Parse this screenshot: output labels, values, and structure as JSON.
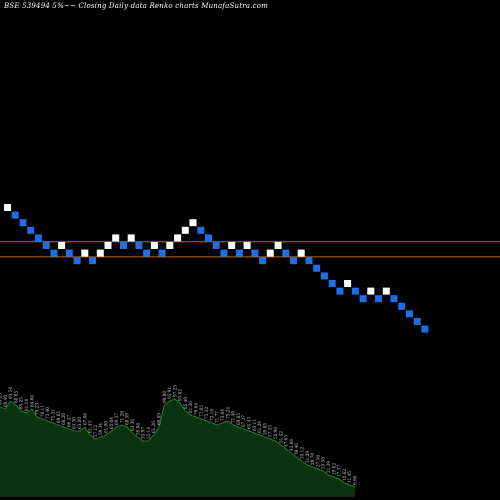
{
  "header": {
    "title": "BSE 539494  5%~~  Closing Daily data  Renko  charts MunafaSutra.com"
  },
  "colors": {
    "background": "#000000",
    "up_brick": "#ffffff",
    "down_brick": "#1e6fe6",
    "level_line": "#b8651a",
    "volume_fill": "#0b3311",
    "volume_line": "#1e7a2a",
    "volume_label": "#c8c8c8"
  },
  "chart_data": {
    "type": "renko",
    "bricks": [
      {
        "dir": "up",
        "level": 18
      },
      {
        "dir": "down",
        "level": 17
      },
      {
        "dir": "down",
        "level": 16
      },
      {
        "dir": "down",
        "level": 15
      },
      {
        "dir": "down",
        "level": 14
      },
      {
        "dir": "down",
        "level": 13
      },
      {
        "dir": "down",
        "level": 12
      },
      {
        "dir": "up",
        "level": 13
      },
      {
        "dir": "down",
        "level": 12
      },
      {
        "dir": "down",
        "level": 11
      },
      {
        "dir": "up",
        "level": 12
      },
      {
        "dir": "down",
        "level": 11
      },
      {
        "dir": "up",
        "level": 12
      },
      {
        "dir": "up",
        "level": 13
      },
      {
        "dir": "up",
        "level": 14
      },
      {
        "dir": "down",
        "level": 13
      },
      {
        "dir": "up",
        "level": 14
      },
      {
        "dir": "down",
        "level": 13
      },
      {
        "dir": "down",
        "level": 12
      },
      {
        "dir": "up",
        "level": 13
      },
      {
        "dir": "down",
        "level": 12
      },
      {
        "dir": "up",
        "level": 13
      },
      {
        "dir": "up",
        "level": 14
      },
      {
        "dir": "up",
        "level": 15
      },
      {
        "dir": "up",
        "level": 16
      },
      {
        "dir": "down",
        "level": 15
      },
      {
        "dir": "down",
        "level": 14
      },
      {
        "dir": "down",
        "level": 13
      },
      {
        "dir": "down",
        "level": 12
      },
      {
        "dir": "up",
        "level": 13
      },
      {
        "dir": "down",
        "level": 12
      },
      {
        "dir": "up",
        "level": 13
      },
      {
        "dir": "down",
        "level": 12
      },
      {
        "dir": "down",
        "level": 11
      },
      {
        "dir": "up",
        "level": 12
      },
      {
        "dir": "up",
        "level": 13
      },
      {
        "dir": "down",
        "level": 12
      },
      {
        "dir": "down",
        "level": 11
      },
      {
        "dir": "up",
        "level": 12
      },
      {
        "dir": "down",
        "level": 11
      },
      {
        "dir": "down",
        "level": 10
      },
      {
        "dir": "down",
        "level": 9
      },
      {
        "dir": "down",
        "level": 8
      },
      {
        "dir": "down",
        "level": 7
      },
      {
        "dir": "up",
        "level": 8
      },
      {
        "dir": "down",
        "level": 7
      },
      {
        "dir": "down",
        "level": 6
      },
      {
        "dir": "up",
        "level": 7
      },
      {
        "dir": "down",
        "level": 6
      },
      {
        "dir": "up",
        "level": 7
      },
      {
        "dir": "down",
        "level": 6
      },
      {
        "dir": "down",
        "level": 5
      },
      {
        "dir": "down",
        "level": 4
      },
      {
        "dir": "down",
        "level": 3
      },
      {
        "dir": "down",
        "level": 2
      }
    ],
    "level_lines": [
      13.5,
      11.5
    ],
    "volume": {
      "values": [
        90,
        88,
        96,
        92,
        86,
        84,
        88,
        80,
        78,
        76,
        74,
        72,
        70,
        68,
        66,
        66,
        70,
        62,
        58,
        60,
        62,
        66,
        70,
        72,
        70,
        64,
        60,
        56,
        56,
        62,
        70,
        92,
        96,
        98,
        94,
        86,
        82,
        80,
        78,
        76,
        74,
        72,
        74,
        76,
        72,
        70,
        68,
        66,
        64,
        62,
        60,
        58,
        56,
        52,
        48,
        44,
        40,
        36,
        32,
        30,
        28,
        26,
        22,
        20,
        18,
        14,
        12,
        10
      ],
      "labels": [
        "86.85",
        "89.40",
        "93.54",
        "88.85",
        "85.25",
        "81.14",
        "84.60",
        "79.23",
        "76.11",
        "73.40",
        "72.21",
        "69.85",
        "68.20",
        "66.47",
        "64.30",
        "63.80",
        "67.06",
        "61.43",
        "57.12",
        "59.34",
        "61.90",
        "65.04",
        "69.37",
        "71.26",
        "68.59",
        "63.30",
        "59.08",
        "55.97",
        "55.14",
        "61.26",
        "69.89",
        "90.80",
        "95.91",
        "97.25",
        "93.82",
        "85.40",
        "81.36",
        "79.64",
        "77.05",
        "75.32",
        "73.18",
        "71.77",
        "73.04",
        "75.24",
        "71.40",
        "69.85",
        "67.27",
        "65.43",
        "63.11",
        "61.26",
        "59.85",
        "57.33",
        "55.90",
        "51.42",
        "47.65",
        "43.06",
        "39.40",
        "35.12",
        "31.29",
        "29.70",
        "27.56",
        "25.58",
        "21.39",
        "19.82",
        "17.37",
        "13.62",
        "11.45",
        "9.90"
      ]
    }
  }
}
